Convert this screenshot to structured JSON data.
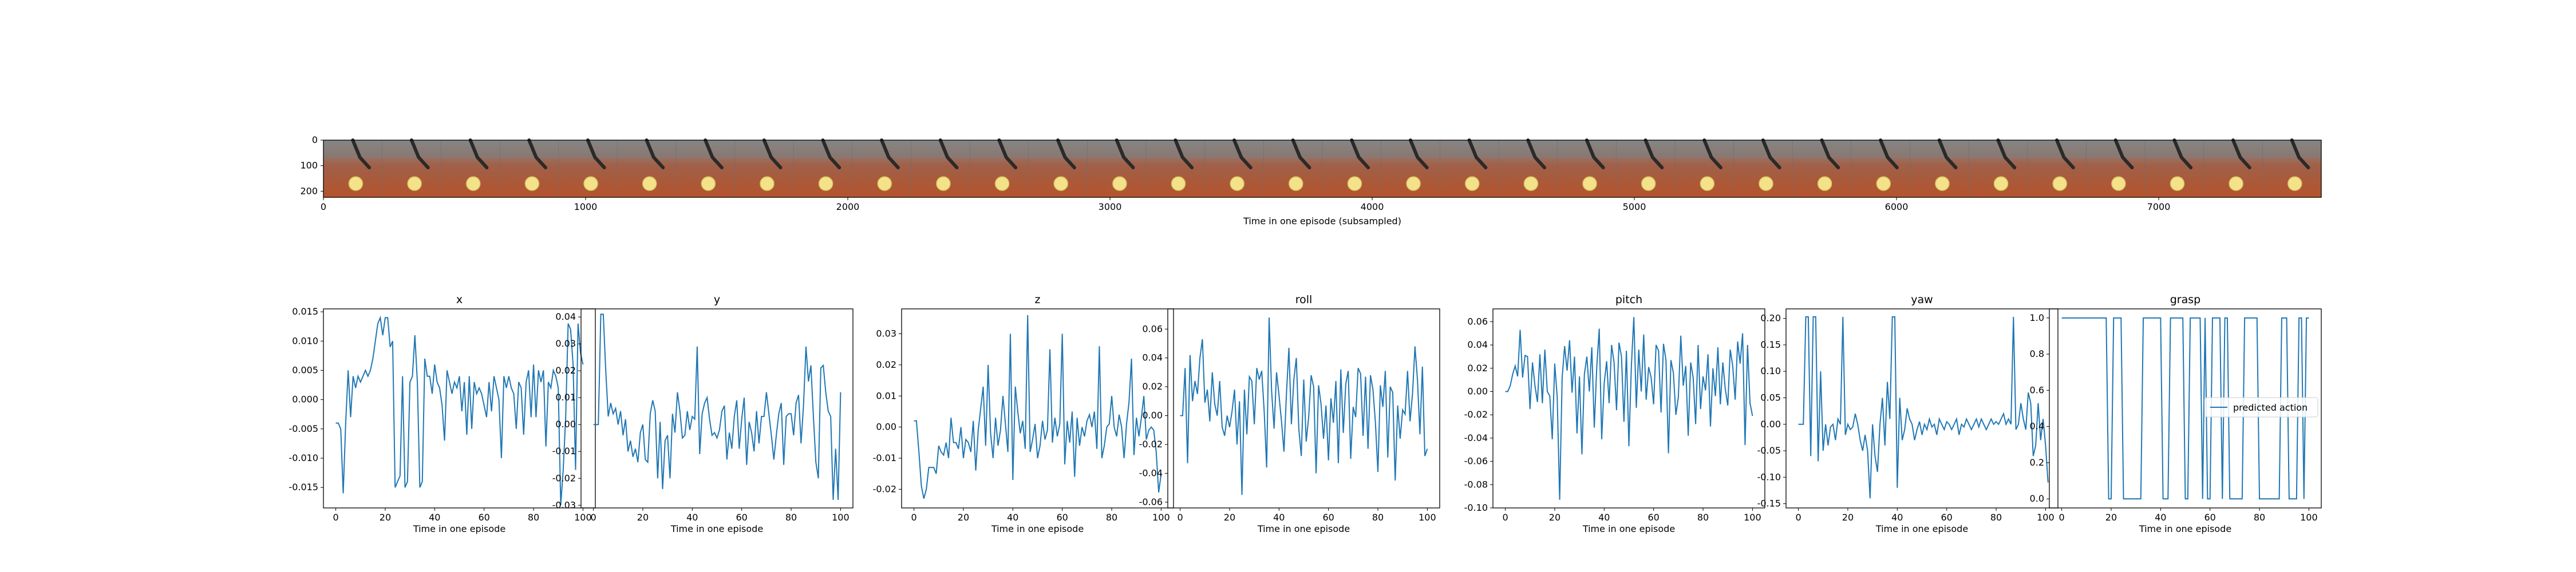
{
  "filmstrip": {
    "xlabel": "Time in one episode (subsampled)",
    "x_ticks": [
      "0",
      "1000",
      "2000",
      "3000",
      "4000",
      "5000",
      "6000",
      "7000"
    ],
    "x_tick_values": [
      0,
      1000,
      2000,
      3000,
      4000,
      5000,
      6000,
      7000
    ],
    "x_max": 7620,
    "y_ticks": [
      "0",
      "100",
      "200"
    ],
    "y_tick_values": [
      0,
      100,
      200
    ],
    "y_max": 224,
    "frame_count": 34
  },
  "chart_data": [
    {
      "type": "line",
      "title": "x",
      "xlabel": "Time in one episode",
      "ylabel": "",
      "xlim": [
        -5,
        105
      ],
      "ylim": [
        -0.0185,
        0.0155
      ],
      "x_ticks": [
        "0",
        "20",
        "40",
        "60",
        "80",
        "100"
      ],
      "y_ticks": [
        "-0.015",
        "-0.010",
        "-0.005",
        "0.000",
        "0.005",
        "0.010",
        "0.015"
      ],
      "y_tick_values": [
        -0.015,
        -0.01,
        -0.005,
        0.0,
        0.005,
        0.01,
        0.015
      ],
      "color": "#1f77b4",
      "values": [
        -0.004,
        -0.004,
        -0.005,
        -0.016,
        -0.004,
        0.005,
        -0.003,
        0.004,
        0.002,
        0.004,
        0.003,
        0.004,
        0.005,
        0.004,
        0.005,
        0.007,
        0.01,
        0.013,
        0.014,
        0.011,
        0.014,
        0.014,
        0.009,
        0.01,
        -0.015,
        -0.014,
        -0.013,
        0.004,
        -0.015,
        -0.014,
        0.003,
        0.004,
        0.011,
        0.003,
        -0.015,
        -0.014,
        0.007,
        0.004,
        0.004,
        0.001,
        0.006,
        0.003,
        0.002,
        -0.001,
        -0.007,
        0.005,
        0.003,
        0.001,
        0.003,
        0.002,
        0.004,
        -0.002,
        0.003,
        -0.006,
        0.004,
        -0.005,
        0.003,
        0.001,
        0.002,
        0.001,
        -0.001,
        -0.003,
        0.003,
        -0.002,
        0.004,
        0.002,
        0.0,
        -0.01,
        0.004,
        0.002,
        0.004,
        0.002,
        0.001,
        -0.005,
        0.003,
        0.002,
        -0.006,
        0.003,
        0.005,
        -0.003,
        0.006,
        -0.003,
        0.005,
        0.003,
        0.005,
        -0.008,
        0.003,
        0.002,
        0.005,
        0.004,
        0.002,
        -0.018,
        -0.012,
        -0.003,
        0.013,
        0.012,
        0.006,
        -0.012,
        0.013,
        0.008,
        0.006
      ]
    },
    {
      "type": "line",
      "title": "y",
      "xlabel": "Time in one episode",
      "ylabel": "",
      "xlim": [
        -5,
        105
      ],
      "ylim": [
        -0.031,
        0.043
      ],
      "x_ticks": [
        "0",
        "20",
        "40",
        "60",
        "80",
        "100"
      ],
      "y_ticks": [
        "-0.03",
        "-0.02",
        "-0.01",
        "0.00",
        "0.01",
        "0.02",
        "0.03",
        "0.04"
      ],
      "y_tick_values": [
        -0.03,
        -0.02,
        -0.01,
        0.0,
        0.01,
        0.02,
        0.03,
        0.04
      ],
      "color": "#1f77b4",
      "values": [
        0.0,
        0.0,
        0.0,
        0.041,
        0.041,
        0.02,
        0.003,
        0.008,
        0.004,
        0.006,
        0.0,
        0.005,
        -0.004,
        0.002,
        -0.01,
        -0.006,
        -0.012,
        -0.009,
        -0.014,
        -0.003,
        0.0,
        -0.013,
        -0.014,
        0.004,
        0.009,
        0.005,
        -0.02,
        0.001,
        -0.024,
        -0.006,
        -0.004,
        -0.02,
        0.004,
        -0.003,
        0.012,
        0.005,
        -0.005,
        -0.004,
        0.005,
        -0.002,
        0.003,
        0.002,
        0.029,
        -0.011,
        0.004,
        0.008,
        0.01,
        0.002,
        -0.004,
        -0.003,
        -0.005,
        -0.002,
        0.005,
        0.007,
        -0.013,
        -0.003,
        -0.009,
        0.003,
        0.009,
        -0.009,
        0.002,
        0.01,
        -0.015,
        0.001,
        -0.003,
        -0.01,
        0.005,
        -0.007,
        0.003,
        0.003,
        0.012,
        0.004,
        -0.004,
        -0.013,
        -0.004,
        0.004,
        0.008,
        -0.015,
        0.003,
        0.004,
        0.004,
        -0.004,
        0.008,
        0.011,
        -0.007,
        0.007,
        0.029,
        0.016,
        0.022,
        0.003,
        -0.014,
        -0.02,
        0.021,
        0.022,
        0.012,
        0.005,
        0.003,
        -0.028,
        -0.009,
        -0.028,
        0.012
      ]
    },
    {
      "type": "line",
      "title": "z",
      "xlabel": "Time in one episode",
      "ylabel": "",
      "xlim": [
        -5,
        105
      ],
      "ylim": [
        -0.026,
        0.038
      ],
      "x_ticks": [
        "0",
        "20",
        "40",
        "60",
        "80",
        "100"
      ],
      "y_ticks": [
        "-0.02",
        "-0.01",
        "0.00",
        "0.01",
        "0.02",
        "0.03"
      ],
      "y_tick_values": [
        -0.02,
        -0.01,
        0.0,
        0.01,
        0.02,
        0.03
      ],
      "color": "#1f77b4",
      "values": [
        0.002,
        0.002,
        -0.008,
        -0.019,
        -0.023,
        -0.02,
        -0.013,
        -0.013,
        -0.013,
        -0.015,
        -0.006,
        -0.008,
        -0.009,
        -0.005,
        -0.01,
        0.003,
        -0.005,
        -0.005,
        -0.007,
        0.0,
        -0.01,
        -0.004,
        -0.005,
        -0.008,
        0.002,
        -0.014,
        -0.001,
        0.006,
        0.013,
        -0.006,
        0.02,
        -0.002,
        -0.01,
        0.003,
        -0.006,
        -0.001,
        0.01,
        0.001,
        -0.008,
        0.03,
        -0.017,
        0.013,
        0.005,
        -0.002,
        0.002,
        -0.007,
        0.036,
        -0.008,
        -0.004,
        0.001,
        -0.01,
        -0.006,
        0.002,
        -0.004,
        -0.001,
        0.025,
        -0.005,
        0.003,
        -0.003,
        0.001,
        0.03,
        -0.012,
        0.002,
        -0.005,
        0.005,
        -0.016,
        0.003,
        -0.006,
        0.0,
        -0.003,
        0.002,
        0.004,
        0.0,
        0.005,
        -0.007,
        0.026,
        -0.01,
        -0.006,
        0.0,
        0.001,
        0.01,
        0.0,
        -0.003,
        0.004,
        0.0,
        -0.01,
        0.001,
        0.008,
        0.022,
        -0.009,
        0.003,
        -0.003,
        0.003,
        0.01,
        -0.004,
        -0.001,
        0.0,
        -0.001,
        -0.008,
        -0.021,
        -0.015
      ]
    },
    {
      "type": "line",
      "title": "roll",
      "xlabel": "Time in one episode",
      "ylabel": "",
      "xlim": [
        -5,
        105
      ],
      "ylim": [
        -0.064,
        0.074
      ],
      "x_ticks": [
        "0",
        "20",
        "40",
        "60",
        "80",
        "100"
      ],
      "y_ticks": [
        "-0.06",
        "-0.04",
        "-0.02",
        "0.00",
        "0.02",
        "0.04",
        "0.06"
      ],
      "y_tick_values": [
        -0.06,
        -0.04,
        -0.02,
        0.0,
        0.02,
        0.04,
        0.06
      ],
      "color": "#1f77b4",
      "values": [
        0.0,
        0.0,
        0.033,
        -0.033,
        0.042,
        0.01,
        0.024,
        0.015,
        0.04,
        0.053,
        0.009,
        0.018,
        -0.004,
        0.03,
        0.008,
        0.0,
        0.024,
        -0.008,
        -0.014,
        0.0,
        -0.008,
        0.003,
        0.018,
        -0.02,
        0.01,
        -0.055,
        0.018,
        -0.013,
        0.027,
        0.024,
        -0.006,
        0.033,
        0.025,
        0.031,
        0.003,
        -0.036,
        0.068,
        0.017,
        -0.009,
        0.03,
        0.014,
        -0.004,
        -0.025,
        0.015,
        0.047,
        -0.006,
        0.025,
        0.04,
        -0.009,
        -0.028,
        0.025,
        -0.018,
        -0.001,
        0.028,
        0.02,
        -0.04,
        0.021,
        0.008,
        -0.016,
        0.007,
        -0.031,
        0.012,
        -0.005,
        0.024,
        -0.033,
        0.032,
        -0.012,
        0.022,
        0.031,
        -0.03,
        0.006,
        -0.001,
        0.033,
        0.029,
        -0.014,
        0.027,
        -0.023,
        0.028,
        0.018,
        -0.005,
        -0.039,
        0.021,
        0.006,
        0.031,
        -0.029,
        0.02,
        0.016,
        -0.045,
        0.007,
        -0.016,
        0.004,
        0.001,
        0.031,
        -0.004,
        0.015,
        0.048,
        0.025,
        -0.013,
        0.034,
        -0.028,
        -0.023
      ]
    },
    {
      "type": "line",
      "title": "pitch",
      "xlabel": "Time in one episode",
      "ylabel": "",
      "xlim": [
        -5,
        105
      ],
      "ylim": [
        -0.1,
        0.071
      ],
      "x_ticks": [
        "0",
        "20",
        "40",
        "60",
        "80",
        "100"
      ],
      "y_ticks": [
        "-0.10",
        "-0.08",
        "-0.06",
        "-0.04",
        "-0.02",
        "0.00",
        "0.02",
        "0.04",
        "0.06"
      ],
      "y_tick_values": [
        -0.1,
        -0.08,
        -0.06,
        -0.04,
        -0.02,
        0.0,
        0.02,
        0.04,
        0.06
      ],
      "color": "#1f77b4",
      "values": [
        0.0,
        0.0,
        0.005,
        0.015,
        0.022,
        0.013,
        0.053,
        0.012,
        0.031,
        0.03,
        -0.015,
        0.025,
        0.005,
        -0.009,
        0.032,
        -0.01,
        0.036,
        0.0,
        -0.004,
        -0.041,
        0.024,
        -0.005,
        -0.093,
        0.012,
        0.039,
        0.018,
        0.044,
        -0.001,
        0.03,
        -0.036,
        0.013,
        -0.054,
        0.015,
        0.03,
        0.0,
        0.038,
        -0.031,
        0.021,
        0.054,
        -0.041,
        0.007,
        0.026,
        -0.01,
        0.04,
        0.025,
        -0.016,
        0.042,
        0.03,
        -0.026,
        0.035,
        -0.047,
        0.022,
        0.064,
        -0.014,
        0.036,
        0.0,
        0.049,
        -0.007,
        0.021,
        0.012,
        -0.011,
        0.04,
        0.035,
        -0.018,
        0.041,
        0.027,
        -0.053,
        0.027,
        0.016,
        -0.02,
        -0.005,
        0.048,
        0.005,
        0.022,
        -0.038,
        0.025,
        0.012,
        -0.028,
        0.04,
        -0.015,
        0.013,
        0.001,
        0.032,
        -0.03,
        0.02,
        -0.004,
        0.038,
        -0.011,
        0.025,
        0.002,
        -0.012,
        0.036,
        0.022,
        -0.007,
        0.043,
        0.024,
        0.05,
        -0.046,
        0.04,
        -0.01,
        -0.021
      ]
    },
    {
      "type": "line",
      "title": "yaw",
      "xlabel": "Time in one episode",
      "ylabel": "",
      "xlim": [
        -5,
        105
      ],
      "ylim": [
        -0.158,
        0.218
      ],
      "x_ticks": [
        "0",
        "20",
        "40",
        "60",
        "80",
        "100"
      ],
      "y_ticks": [
        "-0.15",
        "-0.10",
        "-0.05",
        "0.00",
        "0.05",
        "0.10",
        "0.15",
        "0.20"
      ],
      "y_tick_values": [
        -0.15,
        -0.1,
        -0.05,
        0.0,
        0.05,
        0.1,
        0.15,
        0.2
      ],
      "color": "#1f77b4",
      "values": [
        0.0,
        0.0,
        0.0,
        0.203,
        0.203,
        -0.06,
        0.203,
        0.203,
        -0.07,
        0.1,
        -0.05,
        0.0,
        -0.04,
        -0.005,
        0.0,
        -0.03,
        0.01,
        0.0,
        0.203,
        -0.02,
        0.0,
        -0.01,
        -0.005,
        0.02,
        0.0,
        -0.03,
        -0.05,
        -0.02,
        -0.05,
        -0.14,
        0.0,
        -0.06,
        -0.09,
        0.0,
        0.05,
        -0.04,
        0.08,
        0.01,
        0.203,
        0.203,
        -0.12,
        0.05,
        -0.03,
        -0.01,
        0.03,
        0.01,
        0.0,
        -0.03,
        -0.01,
        0.005,
        -0.02,
        0.0,
        -0.01,
        0.01,
        -0.005,
        0.0,
        -0.02,
        0.01,
        0.0,
        -0.01,
        0.005,
        0.0,
        -0.01,
        0.0,
        0.01,
        -0.02,
        0.0,
        -0.005,
        0.01,
        0.0,
        -0.01,
        0.0,
        0.01,
        -0.005,
        0.01,
        0.0,
        -0.01,
        0.0,
        0.01,
        0.0,
        0.005,
        0.0,
        0.01,
        0.02,
        0.0,
        0.01,
        0.0,
        0.203,
        -0.01,
        0.0,
        0.04,
        0.01,
        -0.01,
        0.06,
        0.04,
        -0.06,
        -0.04,
        0.04,
        -0.03,
        0.01,
        -0.04,
        -0.11
      ]
    },
    {
      "type": "line",
      "title": "grasp",
      "xlabel": "Time in one episode",
      "ylabel": "",
      "xlim": [
        -5,
        105
      ],
      "ylim": [
        -0.05,
        1.05
      ],
      "x_ticks": [
        "0",
        "20",
        "40",
        "60",
        "80",
        "100"
      ],
      "y_ticks": [
        "0.0",
        "0.2",
        "0.4",
        "0.6",
        "0.8",
        "1.0"
      ],
      "y_tick_values": [
        0.0,
        0.2,
        0.4,
        0.6,
        0.8,
        1.0
      ],
      "color": "#1f77b4",
      "legend": {
        "label": "predicted action",
        "placement": "center-right"
      },
      "values": [
        1,
        1,
        1,
        1,
        1,
        1,
        1,
        1,
        1,
        1,
        1,
        1,
        1,
        1,
        1,
        1,
        1,
        1,
        1,
        0,
        0,
        1,
        1,
        1,
        1,
        0,
        0,
        0,
        0,
        0,
        0,
        0,
        0,
        1,
        1,
        1,
        1,
        1,
        1,
        1,
        1,
        0,
        0,
        0,
        1,
        1,
        1,
        1,
        1,
        1,
        0,
        0,
        1,
        1,
        1,
        1,
        1,
        0,
        1,
        0,
        0,
        1,
        1,
        1,
        1,
        0,
        1,
        1,
        0,
        0,
        0,
        0,
        0,
        0,
        1,
        1,
        1,
        1,
        1,
        1,
        0,
        0,
        0,
        0,
        0,
        0,
        0,
        0,
        0,
        1,
        1,
        1,
        0,
        0,
        0,
        0,
        1,
        1,
        0,
        1,
        1
      ]
    }
  ]
}
